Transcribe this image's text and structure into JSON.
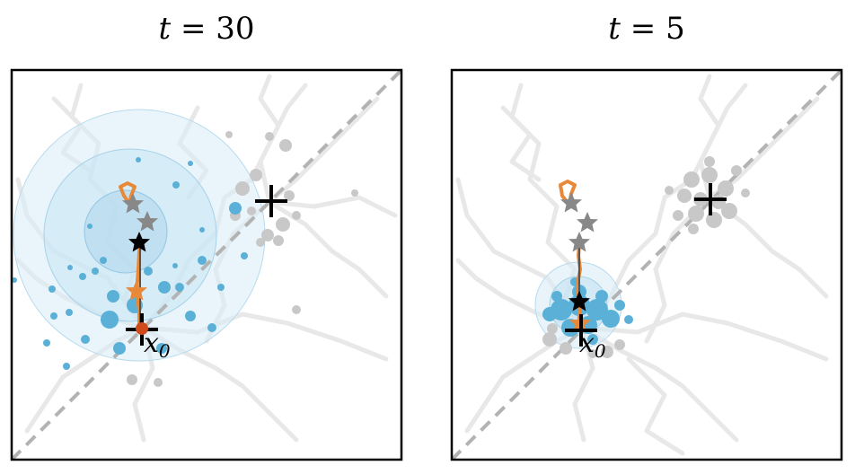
{
  "panels": [
    {
      "title_var": "t",
      "title_eq": "=",
      "title_val": "30",
      "anchor_label": "x",
      "anchor_sub": "0"
    },
    {
      "title_var": "t",
      "title_eq": "=",
      "title_val": "5",
      "anchor_label": "x",
      "anchor_sub": "0"
    }
  ],
  "colors": {
    "background_paths": "#e6e6e6",
    "gray_markers": "#c4c4c4",
    "blue_markers": "#5ab0d6",
    "blue_region": "#cfe8f4",
    "orange_path": "#e8893a",
    "gray_star": "#808080",
    "black_star": "#000000",
    "red_dot": "#d04a1c",
    "diagonal": "#b0b0b0",
    "frame": "#000000"
  }
}
